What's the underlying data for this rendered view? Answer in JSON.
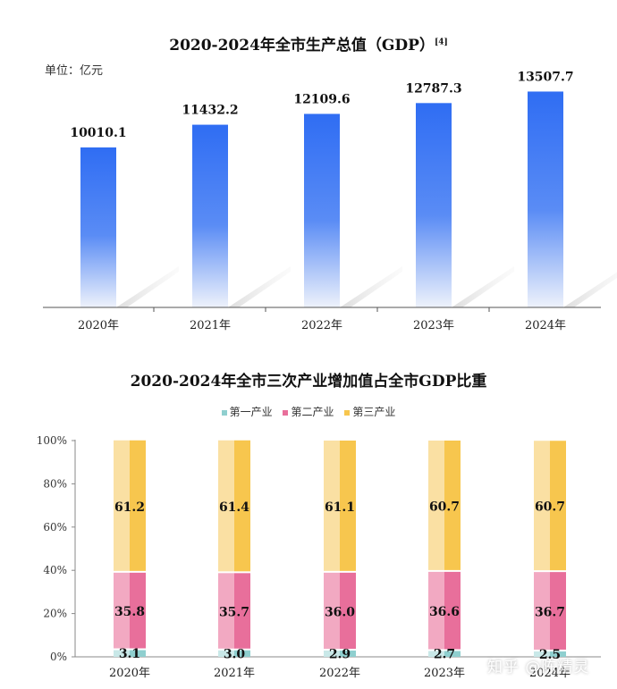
{
  "gdp_chart": {
    "title": "2020-2024年全市生产总值（GDP）",
    "ref": "[4]",
    "unit": "单位：亿元"
  },
  "share_chart": {
    "title": "2020-2024年全市三次产业增加值占全市GDP比重"
  },
  "watermark": "知乎 @陈精灵",
  "chart_data": [
    {
      "type": "bar",
      "title": "2020-2024年全市生产总值（GDP）",
      "ylabel": "单位：亿元",
      "categories": [
        "2020年",
        "2021年",
        "2022年",
        "2023年",
        "2024年"
      ],
      "values": [
        10010.1,
        11432.2,
        12109.6,
        12787.3,
        13507.7
      ],
      "value_labels": [
        "10010.1",
        "11432.2",
        "12109.6",
        "12787.3",
        "13507.7"
      ],
      "ylim": [
        0,
        17000
      ],
      "colors": {
        "top": "#2f6df3",
        "bottom": "#eef2fb"
      }
    },
    {
      "type": "bar",
      "stacked": true,
      "title": "2020-2024年全市三次产业增加值占全市GDP比重",
      "categories": [
        "2020年",
        "2021年",
        "2022年",
        "2023年",
        "2024年"
      ],
      "yticks": [
        "0%",
        "20%",
        "40%",
        "60%",
        "80%",
        "100%"
      ],
      "ylim": [
        0,
        100
      ],
      "legend_position": "top-center",
      "series": [
        {
          "name": "第一产业",
          "values": [
            3.1,
            3.0,
            2.9,
            2.7,
            2.5
          ],
          "labels": [
            "3.1",
            "3.0",
            "2.9",
            "2.7",
            "2.5"
          ],
          "color": "#8fcfcf",
          "light": "#c9e8e8"
        },
        {
          "name": "第二产业",
          "values": [
            35.8,
            35.7,
            36.0,
            36.6,
            36.7
          ],
          "labels": [
            "35.8",
            "35.7",
            "36.0",
            "36.6",
            "36.7"
          ],
          "color": "#e86f9b",
          "light": "#f2a9c2"
        },
        {
          "name": "第三产业",
          "values": [
            61.2,
            61.4,
            61.1,
            60.7,
            60.7
          ],
          "labels": [
            "61.2",
            "61.4",
            "61.1",
            "60.7",
            "60.7"
          ],
          "color": "#f7c64e",
          "light": "#fae0a3"
        }
      ]
    }
  ]
}
